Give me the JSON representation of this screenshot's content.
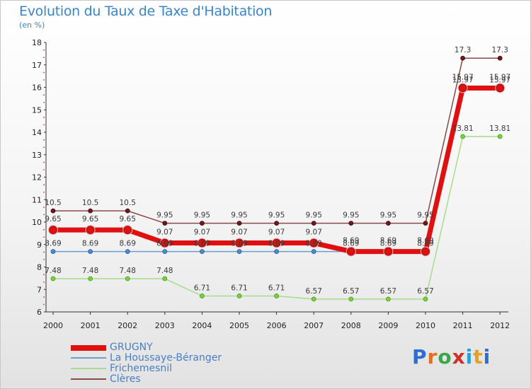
{
  "title": "Evolution du Taux de Taxe d'Habitation",
  "unit_label": "(en %)",
  "brand": {
    "letters": [
      "P",
      "r",
      "o",
      "x",
      "i",
      "t",
      "i"
    ],
    "colors": [
      "#2a6fd1",
      "#e07020",
      "#3aa64a",
      "#d0302a",
      "#2aa0d8",
      "#e8a020",
      "#2a6fd1"
    ]
  },
  "chart_data": {
    "type": "line",
    "title": "Evolution du Taux de Taxe d'Habitation",
    "ylabel": "(en %)",
    "categories": [
      "2000",
      "2001",
      "2002",
      "2003",
      "2004",
      "2005",
      "2006",
      "2007",
      "2008",
      "2009",
      "2010",
      "2011",
      "2012"
    ],
    "ylim": [
      6,
      18
    ],
    "yticks": [
      6,
      7,
      8,
      9,
      10,
      11,
      12,
      13,
      14,
      15,
      16,
      17,
      18
    ],
    "grid": false,
    "legend": "bottom-left",
    "series": [
      {
        "name": "GRUGNY",
        "color": "#e01010",
        "values": [
          9.65,
          9.65,
          9.65,
          9.07,
          9.07,
          9.07,
          9.07,
          9.07,
          8.69,
          8.69,
          8.69,
          15.97,
          15.97
        ],
        "labels": [
          "9.65",
          "9.65",
          "9.65",
          "9.07",
          "9.07",
          "9.07",
          "9.07",
          "9.07",
          "8.69",
          "8.69",
          "8.69",
          "15.97",
          "15.97"
        ]
      },
      {
        "name": "La Houssaye-Béranger",
        "color": "#6e9ccc",
        "values": [
          8.69,
          8.69,
          8.69,
          8.69,
          8.69,
          8.69,
          8.69,
          8.69,
          8.69,
          8.69,
          8.69,
          15.97,
          15.97
        ],
        "labels": [
          "8.69",
          "8.69",
          "8.69",
          "8.69",
          "8.69",
          "8.69",
          "8.69",
          "8.69",
          "8.69",
          "8.69",
          "8.69",
          "15.97",
          "15.97"
        ]
      },
      {
        "name": "Frichemesnil",
        "color": "#a8dc8c",
        "values": [
          7.48,
          7.48,
          7.48,
          7.48,
          6.71,
          6.71,
          6.71,
          6.57,
          6.57,
          6.57,
          6.57,
          13.81,
          13.81
        ],
        "labels": [
          "7.48",
          "7.48",
          "7.48",
          "7.48",
          "6.71",
          "6.71",
          "6.71",
          "6.57",
          "6.57",
          "6.57",
          "6.57",
          "13.81",
          "13.81"
        ]
      },
      {
        "name": "Clères",
        "color": "#8a4a4a",
        "values": [
          10.5,
          10.5,
          10.5,
          9.95,
          9.95,
          9.95,
          9.95,
          9.95,
          9.95,
          9.95,
          9.95,
          17.3,
          17.3
        ],
        "labels": [
          "10.5",
          "10.5",
          "10.5",
          "9.95",
          "9.95",
          "9.95",
          "9.95",
          "9.95",
          "9.95",
          "9.95",
          "9.95",
          "17.3",
          "17.3"
        ]
      }
    ]
  }
}
